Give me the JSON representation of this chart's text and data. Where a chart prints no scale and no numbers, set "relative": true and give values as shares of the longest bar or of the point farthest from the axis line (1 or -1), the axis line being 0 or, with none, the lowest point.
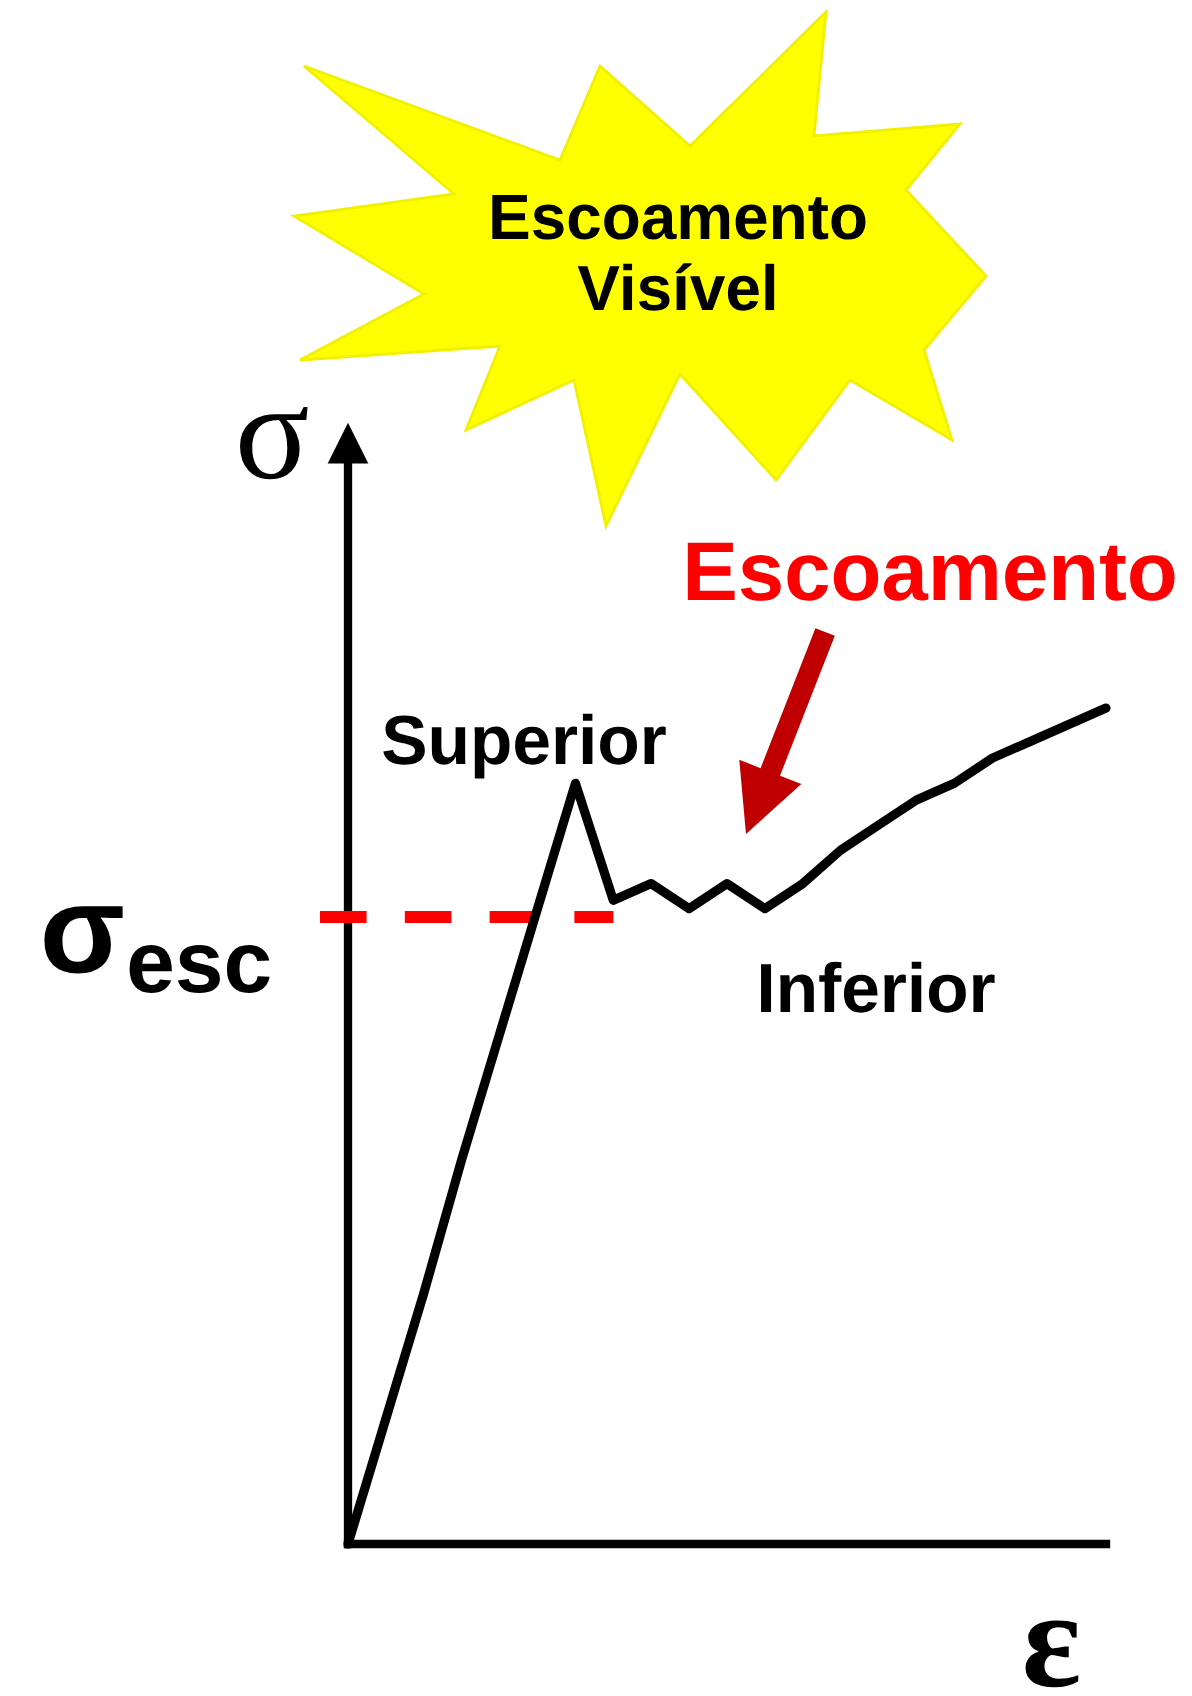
{
  "chart_data": {
    "type": "line",
    "relative": true,
    "xlabel": "ε",
    "ylabel": "σ",
    "categories": [
      null,
      null,
      null,
      null,
      null,
      null,
      null,
      null,
      null,
      null,
      null,
      null,
      null,
      null,
      null,
      null,
      null,
      null,
      null,
      null,
      null
    ],
    "series": [
      {
        "color": "#000000",
        "values": [
          0,
          0.15,
          0.3,
          0.46,
          0.61,
          0.76,
          0.91,
          0.77,
          0.79,
          0.76,
          0.79,
          0.76,
          0.79,
          0.83,
          0.86,
          0.89,
          0.91,
          0.94,
          0.96,
          0.98,
          1
        ]
      }
    ],
    "ref_lines": [
      {
        "axis": "y",
        "value": 0.75,
        "label": "σ$_{esc}$",
        "color": "#ff0000",
        "line_style": "dashed"
      }
    ],
    "annotations": [
      "Escoamento\nVisível",
      "Escoamento",
      "Superior",
      "Inferior"
    ]
  }
}
